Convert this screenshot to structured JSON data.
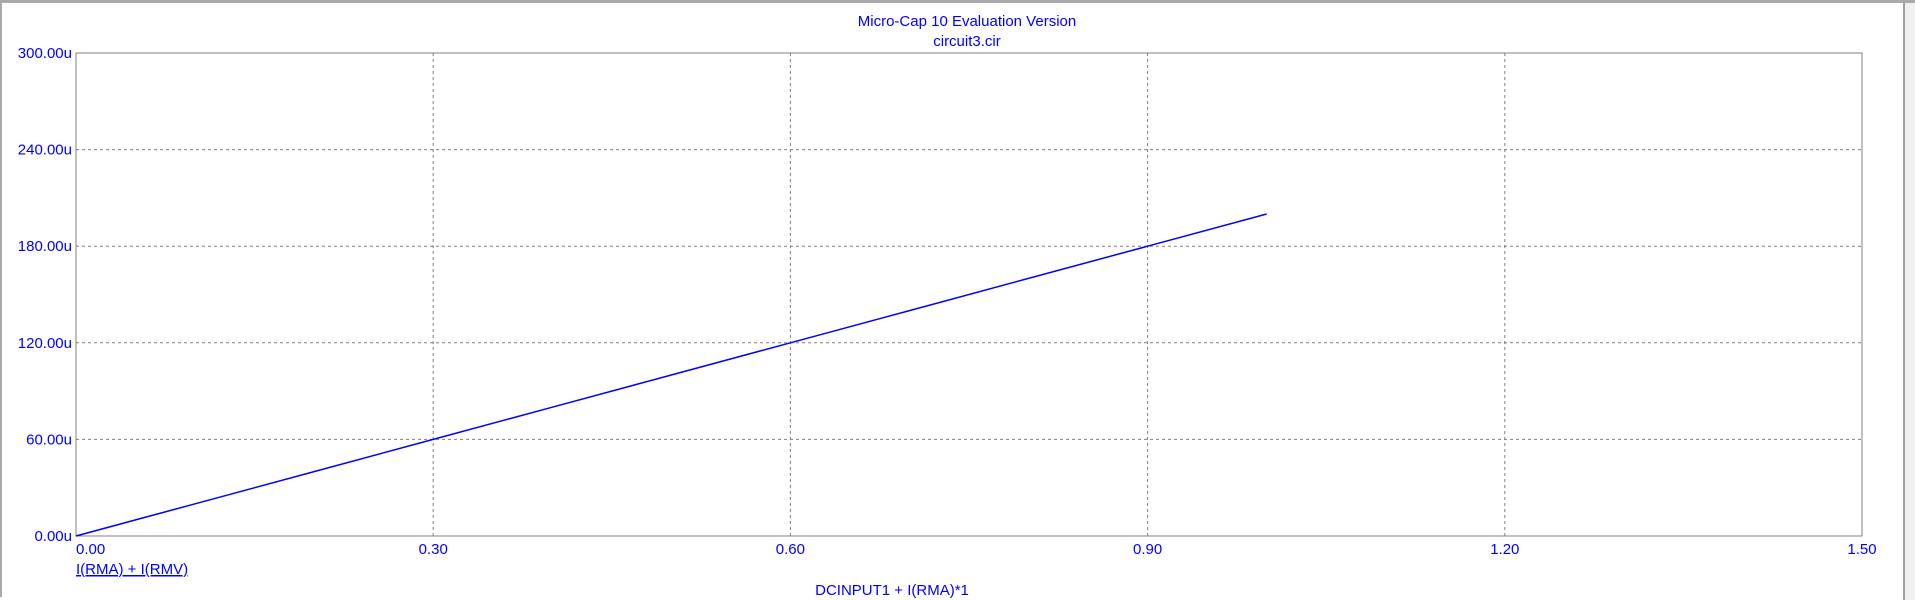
{
  "header": {
    "title": "Micro-Cap 10 Evaluation Version",
    "subtitle": "circuit3.cir"
  },
  "colors": {
    "text": "#0000ff",
    "trace": "#0000ff",
    "grid": "#808080",
    "frame": "#808080"
  },
  "chart_data": {
    "type": "line",
    "title": "Micro-Cap 10 Evaluation Version",
    "subtitle": "circuit3.cir",
    "xlabel": "DCINPUT1 + I(RMA)*1",
    "ylabel": "",
    "xlim": [
      0,
      1.5
    ],
    "ylim": [
      0,
      300
    ],
    "grid": true,
    "x_ticks": [
      "0.00",
      "0.30",
      "0.60",
      "0.90",
      "1.20",
      "1.50"
    ],
    "y_ticks": [
      "0.00u",
      "60.00u",
      "120.00u",
      "180.00u",
      "240.00u",
      "300.00u"
    ],
    "y_unit": "u",
    "series": [
      {
        "name": "I(RMA) + I(RMV)",
        "x": [
          0,
          0.1,
          0.2,
          0.3,
          0.4,
          0.5,
          0.6,
          0.7,
          0.8,
          0.9,
          1.0
        ],
        "y": [
          0,
          20,
          40,
          60,
          80,
          100,
          120,
          140,
          160,
          180,
          200
        ]
      }
    ]
  }
}
